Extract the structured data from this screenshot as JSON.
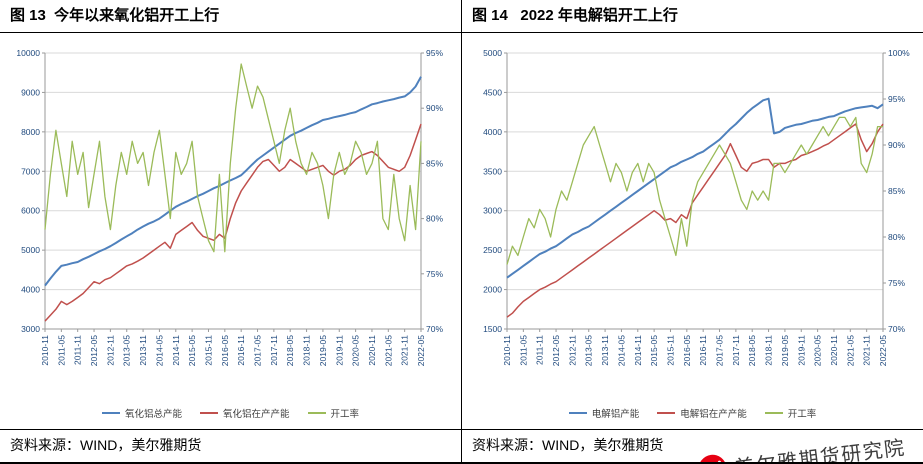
{
  "page": {
    "watermark": "美尔雅期货研究院"
  },
  "figures": [
    {
      "title": "图 13  今年以来氧化铝开工上行",
      "source": "资料来源：WIND，美尔雅期货"
    },
    {
      "title": "图 14   2022 年电解铝开工上行",
      "source": "资料来源：WIND，美尔雅期货"
    }
  ],
  "colors": {
    "blue": "#4f81bd",
    "red": "#c0504d",
    "green": "#9bbb59",
    "axis_text": "#1f497d",
    "gridline": "#d9d9d9",
    "axis_line": "#9a9a9a",
    "logo_red": "#e60012"
  },
  "chart_data": [
    {
      "type": "line",
      "title": "图 13 今年以来氧化铝开工上行",
      "xlabel": "",
      "ylabel": "",
      "ylim": [
        3000,
        10000
      ],
      "y_step": 1000,
      "y2lim": [
        70,
        95
      ],
      "y2_step": 5,
      "grid": true,
      "legend_position": "bottom",
      "x_labels": [
        "2010-11",
        "2011-05",
        "2011-11",
        "2012-05",
        "2012-11",
        "2013-05",
        "2013-11",
        "2014-05",
        "2014-11",
        "2015-05",
        "2015-11",
        "2016-05",
        "2016-11",
        "2017-05",
        "2017-11",
        "2018-05",
        "2018-11",
        "2019-05",
        "2019-11",
        "2020-05",
        "2020-11",
        "2021-05",
        "2021-11",
        "2022-05"
      ],
      "series": [
        {
          "name": "氧化铝总产能",
          "axis": "left",
          "color": "#4f81bd",
          "values": [
            4100,
            4280,
            4450,
            4600,
            4630,
            4670,
            4700,
            4770,
            4830,
            4900,
            4970,
            5030,
            5100,
            5180,
            5270,
            5350,
            5430,
            5520,
            5600,
            5670,
            5730,
            5800,
            5900,
            6000,
            6100,
            6170,
            6230,
            6300,
            6370,
            6430,
            6500,
            6570,
            6630,
            6700,
            6770,
            6830,
            6900,
            7030,
            7170,
            7300,
            7400,
            7500,
            7600,
            7700,
            7800,
            7900,
            7970,
            8030,
            8100,
            8170,
            8230,
            8300,
            8330,
            8370,
            8400,
            8430,
            8470,
            8500,
            8570,
            8630,
            8700,
            8730,
            8770,
            8800,
            8830,
            8870,
            8900,
            9000,
            9150,
            9400
          ]
        },
        {
          "name": "氧化铝在产产能",
          "axis": "left",
          "color": "#c0504d",
          "values": [
            3200,
            3350,
            3500,
            3700,
            3620,
            3700,
            3800,
            3900,
            4050,
            4200,
            4150,
            4250,
            4300,
            4400,
            4500,
            4600,
            4650,
            4720,
            4800,
            4900,
            5000,
            5100,
            5200,
            5050,
            5400,
            5500,
            5600,
            5700,
            5500,
            5350,
            5300,
            5250,
            5400,
            5300,
            5800,
            6200,
            6500,
            6700,
            6900,
            7100,
            7250,
            7300,
            7150,
            7000,
            7100,
            7300,
            7200,
            7100,
            7000,
            7050,
            7100,
            7150,
            7000,
            6900,
            7000,
            7050,
            7150,
            7300,
            7400,
            7450,
            7500,
            7400,
            7250,
            7100,
            7050,
            7000,
            7100,
            7400,
            7800,
            8200
          ]
        },
        {
          "name": "开工率",
          "axis": "right",
          "color": "#9bbb59",
          "values": [
            79,
            84,
            88,
            85,
            82,
            87,
            84,
            86,
            81,
            84,
            87,
            82,
            79,
            83,
            86,
            84,
            87,
            85,
            86,
            83,
            86,
            88,
            84,
            80,
            86,
            84,
            85,
            87,
            82,
            80,
            78,
            77,
            84,
            77,
            85,
            90,
            94,
            92,
            90,
            92,
            91,
            89,
            87,
            85,
            88,
            90,
            87,
            85,
            84,
            86,
            85,
            83,
            80,
            84,
            86,
            84,
            85,
            87,
            86,
            84,
            85,
            87,
            80,
            79,
            84,
            80,
            78,
            83,
            79,
            87
          ]
        }
      ]
    },
    {
      "type": "line",
      "title": "图 14 2022 年电解铝开工上行",
      "xlabel": "",
      "ylabel": "",
      "ylim": [
        1500,
        5000
      ],
      "y_step": 500,
      "y2lim": [
        70,
        100
      ],
      "y2_step": 5,
      "grid": true,
      "legend_position": "bottom",
      "x_labels": [
        "2010-11",
        "2011-05",
        "2011-11",
        "2012-05",
        "2012-11",
        "2013-05",
        "2013-11",
        "2014-05",
        "2014-11",
        "2015-05",
        "2015-11",
        "2016-05",
        "2016-11",
        "2017-05",
        "2017-11",
        "2018-05",
        "2018-11",
        "2019-05",
        "2019-11",
        "2020-05",
        "2020-11",
        "2021-05",
        "2021-11",
        "2022-05"
      ],
      "series": [
        {
          "name": "电解铝产能",
          "axis": "left",
          "color": "#4f81bd",
          "values": [
            2150,
            2200,
            2250,
            2300,
            2350,
            2400,
            2450,
            2480,
            2520,
            2550,
            2600,
            2650,
            2700,
            2730,
            2770,
            2800,
            2850,
            2900,
            2950,
            3000,
            3050,
            3100,
            3150,
            3200,
            3250,
            3300,
            3350,
            3400,
            3450,
            3500,
            3550,
            3580,
            3620,
            3650,
            3680,
            3720,
            3750,
            3800,
            3850,
            3900,
            3970,
            4040,
            4100,
            4170,
            4240,
            4300,
            4350,
            4400,
            4420,
            3980,
            4000,
            4050,
            4070,
            4090,
            4100,
            4120,
            4140,
            4150,
            4170,
            4190,
            4200,
            4230,
            4260,
            4280,
            4300,
            4310,
            4320,
            4330,
            4300,
            4350
          ]
        },
        {
          "name": "电解铝在产产能",
          "axis": "left",
          "color": "#c0504d",
          "values": [
            1650,
            1700,
            1780,
            1850,
            1900,
            1950,
            2000,
            2030,
            2070,
            2100,
            2150,
            2200,
            2250,
            2300,
            2350,
            2400,
            2450,
            2500,
            2550,
            2600,
            2650,
            2700,
            2750,
            2800,
            2850,
            2900,
            2950,
            3000,
            2950,
            2880,
            2900,
            2850,
            2950,
            2900,
            3100,
            3200,
            3300,
            3400,
            3500,
            3600,
            3700,
            3850,
            3700,
            3550,
            3500,
            3600,
            3620,
            3650,
            3650,
            3550,
            3600,
            3600,
            3630,
            3650,
            3700,
            3720,
            3750,
            3780,
            3820,
            3850,
            3900,
            3950,
            4000,
            4050,
            4100,
            3900,
            3750,
            3850,
            4000,
            4100
          ]
        },
        {
          "name": "开工率",
          "axis": "right",
          "color": "#9bbb59",
          "values": [
            77,
            79,
            78,
            80,
            82,
            81,
            83,
            82,
            80,
            83,
            85,
            84,
            86,
            88,
            90,
            91,
            92,
            90,
            88,
            86,
            88,
            87,
            85,
            87,
            88,
            86,
            88,
            87,
            84,
            82,
            80,
            78,
            82,
            79,
            84,
            86,
            87,
            88,
            89,
            90,
            89,
            88,
            86,
            84,
            83,
            85,
            84,
            85,
            84,
            88,
            88,
            87,
            88,
            89,
            90,
            89,
            90,
            91,
            92,
            91,
            92,
            93,
            93,
            92,
            93,
            88,
            87,
            89,
            92,
            92
          ]
        }
      ]
    }
  ]
}
